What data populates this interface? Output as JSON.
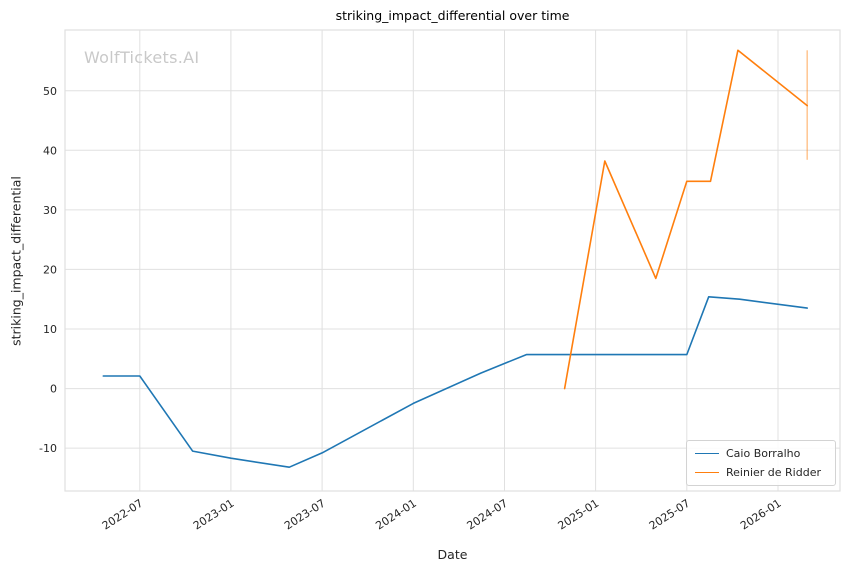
{
  "figure": {
    "title": "striking_impact_differential over time",
    "xlabel": "Date",
    "ylabel": "striking_impact_differential",
    "watermark": "WolfTickets.AI"
  },
  "legend": {
    "items": [
      {
        "label": "Caio Borralho",
        "color": "#1f77b4"
      },
      {
        "label": "Reinier de Ridder",
        "color": "#ff7f0e"
      }
    ]
  },
  "chart_data": {
    "type": "line",
    "title": "striking_impact_differential over time",
    "xlabel": "Date",
    "ylabel": "striking_impact_differential",
    "grid": true,
    "grid_color": "#e0e0e0",
    "tick_color": "#262626",
    "legend_position": "lower right",
    "x_domain": [
      2022.09,
      2026.34
    ],
    "y_domain": [
      -17.2,
      60.2
    ],
    "y_ticks": [
      -10,
      0,
      10,
      20,
      30,
      40,
      50
    ],
    "x_ticks": [
      {
        "value": 2022.5,
        "label": "2022-07"
      },
      {
        "value": 2023.0,
        "label": "2023-01"
      },
      {
        "value": 2023.5,
        "label": "2023-07"
      },
      {
        "value": 2024.0,
        "label": "2024-01"
      },
      {
        "value": 2024.5,
        "label": "2024-07"
      },
      {
        "value": 2025.0,
        "label": "2025-01"
      },
      {
        "value": 2025.5,
        "label": "2025-07"
      },
      {
        "value": 2026.0,
        "label": "2026-01"
      }
    ],
    "series": [
      {
        "name": "Caio Borralho",
        "color": "#1f77b4",
        "points": [
          {
            "date": "2022-04",
            "x": 2022.3,
            "y": 2.1
          },
          {
            "date": "2022-07",
            "x": 2022.5,
            "y": 2.1
          },
          {
            "date": "2022-10",
            "x": 2022.79,
            "y": -10.5
          },
          {
            "date": "2023-01",
            "x": 2023.0,
            "y": -11.7
          },
          {
            "date": "2023-04",
            "x": 2023.32,
            "y": -13.2
          },
          {
            "date": "2023-07",
            "x": 2023.5,
            "y": -10.8
          },
          {
            "date": "2024-01",
            "x": 2024.0,
            "y": -2.5
          },
          {
            "date": "2024-05",
            "x": 2024.37,
            "y": 2.6
          },
          {
            "date": "2024-08",
            "x": 2024.62,
            "y": 5.7
          },
          {
            "date": "2025-07",
            "x": 2025.5,
            "y": 5.7
          },
          {
            "date": "2025-08",
            "x": 2025.62,
            "y": 15.4
          },
          {
            "date": "2025-10",
            "x": 2025.79,
            "y": 15.0
          },
          {
            "date": "2026-02",
            "x": 2026.16,
            "y": 13.5
          }
        ]
      },
      {
        "name": "Reinier de Ridder",
        "color": "#ff7f0e",
        "points": [
          {
            "date": "2024-11",
            "x": 2024.83,
            "y": 0.0
          },
          {
            "date": "2025-01",
            "x": 2025.05,
            "y": 38.2
          },
          {
            "date": "2025-05",
            "x": 2025.33,
            "y": 18.5
          },
          {
            "date": "2025-07",
            "x": 2025.5,
            "y": 34.8
          },
          {
            "date": "2025-08",
            "x": 2025.63,
            "y": 34.8
          },
          {
            "date": "2025-10",
            "x": 2025.78,
            "y": 56.8
          },
          {
            "date": "2026-02",
            "x": 2026.16,
            "y": 47.5
          }
        ],
        "error_bar": {
          "x": 2026.16,
          "low": 38.4,
          "high": 56.8
        }
      }
    ]
  }
}
